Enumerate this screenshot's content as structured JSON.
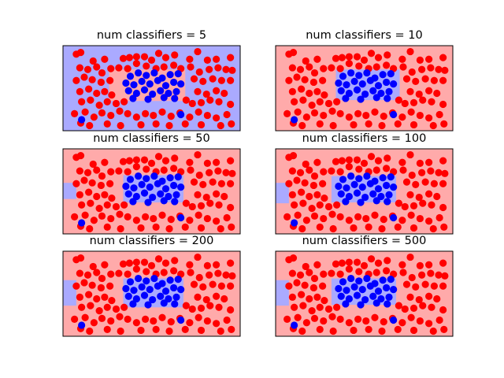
{
  "colors": {
    "region_red": "#FFAAAA",
    "region_blue": "#AAAAFF",
    "point_red": "#FF0000",
    "point_blue": "#0000FF",
    "frame": "#000000"
  },
  "chart_data": [
    {
      "type": "scatter",
      "title": "num classifiers = 5",
      "xlim": [
        0,
        20
      ],
      "ylim": [
        0,
        10
      ],
      "grid": false,
      "regions": [
        {
          "class": "blue",
          "x0": 0,
          "x1": 20,
          "y0": 0,
          "y1": 10
        },
        {
          "class": "red",
          "x0": 5.2,
          "x1": 13.8,
          "y0": 3.5,
          "y1": 7.2
        }
      ]
    },
    {
      "type": "scatter",
      "title": "num classifiers = 10",
      "xlim": [
        0,
        20
      ],
      "ylim": [
        0,
        10
      ],
      "grid": false,
      "regions": [
        {
          "class": "red",
          "x0": 0,
          "x1": 20,
          "y0": 0,
          "y1": 10
        },
        {
          "class": "blue",
          "x0": 6.8,
          "x1": 14.0,
          "y0": 3.6,
          "y1": 7.2
        }
      ]
    },
    {
      "type": "scatter",
      "title": "num classifiers = 50",
      "xlim": [
        0,
        20
      ],
      "ylim": [
        0,
        10
      ],
      "grid": false,
      "regions": [
        {
          "class": "red",
          "x0": 0,
          "x1": 20,
          "y0": 0,
          "y1": 10
        },
        {
          "class": "blue",
          "x0": 0,
          "x1": 1.5,
          "y0": 4.1,
          "y1": 6.0
        },
        {
          "class": "blue",
          "x0": 6.8,
          "x1": 13.6,
          "y0": 3.7,
          "y1": 6.9
        }
      ]
    },
    {
      "type": "scatter",
      "title": "num classifiers = 100",
      "xlim": [
        0,
        20
      ],
      "ylim": [
        0,
        10
      ],
      "grid": false,
      "regions": [
        {
          "class": "red",
          "x0": 0,
          "x1": 20,
          "y0": 0,
          "y1": 10
        },
        {
          "class": "blue",
          "x0": 0,
          "x1": 1.5,
          "y0": 3.6,
          "y1": 6.0
        },
        {
          "class": "blue",
          "x0": 6.3,
          "x1": 13.6,
          "y0": 3.7,
          "y1": 6.8
        }
      ]
    },
    {
      "type": "scatter",
      "title": "num classifiers = 200",
      "xlim": [
        0,
        20
      ],
      "ylim": [
        0,
        10
      ],
      "grid": false,
      "regions": [
        {
          "class": "red",
          "x0": 0,
          "x1": 20,
          "y0": 0,
          "y1": 10
        },
        {
          "class": "blue",
          "x0": 0,
          "x1": 1.5,
          "y0": 3.6,
          "y1": 6.6
        },
        {
          "class": "blue",
          "x0": 6.8,
          "x1": 13.6,
          "y0": 3.4,
          "y1": 6.8
        }
      ]
    },
    {
      "type": "scatter",
      "title": "num classifiers = 500",
      "xlim": [
        0,
        20
      ],
      "ylim": [
        0,
        10
      ],
      "grid": false,
      "regions": [
        {
          "class": "red",
          "x0": 0,
          "x1": 20,
          "y0": 0,
          "y1": 10
        },
        {
          "class": "blue",
          "x0": 0,
          "x1": 1.5,
          "y0": 3.6,
          "y1": 6.6
        },
        {
          "class": "blue",
          "x0": 6.3,
          "x1": 13.6,
          "y0": 3.7,
          "y1": 6.8
        }
      ]
    }
  ],
  "points": {
    "red": [
      [
        1.5,
        9.0
      ],
      [
        2.0,
        9.2
      ],
      [
        3.4,
        8.2
      ],
      [
        4.7,
        8.4
      ],
      [
        6.8,
        8.5
      ],
      [
        7.5,
        8.6
      ],
      [
        8.3,
        8.7
      ],
      [
        9.2,
        8.7
      ],
      [
        10.0,
        8.3
      ],
      [
        10.8,
        9.1
      ],
      [
        11.6,
        8.6
      ],
      [
        12.6,
        8.9
      ],
      [
        14.3,
        8.4
      ],
      [
        15.2,
        9.3
      ],
      [
        16.3,
        8.3
      ],
      [
        17.3,
        8.4
      ],
      [
        18.9,
        8.6
      ],
      [
        1.9,
        7.4
      ],
      [
        2.8,
        7.2
      ],
      [
        3.8,
        7.5
      ],
      [
        4.4,
        6.8
      ],
      [
        5.4,
        7.3
      ],
      [
        6.3,
        7.4
      ],
      [
        7.3,
        7.3
      ],
      [
        8.3,
        7.9
      ],
      [
        9.4,
        7.6
      ],
      [
        10.5,
        7.3
      ],
      [
        11.4,
        7.5
      ],
      [
        12.5,
        7.7
      ],
      [
        13.3,
        7.3
      ],
      [
        14.4,
        7.5
      ],
      [
        15.4,
        6.9
      ],
      [
        16.5,
        7.2
      ],
      [
        17.5,
        7.4
      ],
      [
        18.4,
        7.2
      ],
      [
        19.1,
        7.1
      ],
      [
        1.5,
        5.9
      ],
      [
        2.4,
        6.3
      ],
      [
        3.3,
        6.0
      ],
      [
        4.3,
        5.7
      ],
      [
        5.3,
        5.9
      ],
      [
        14.8,
        6.1
      ],
      [
        15.8,
        5.8
      ],
      [
        16.9,
        6.1
      ],
      [
        17.9,
        5.9
      ],
      [
        18.9,
        5.9
      ],
      [
        1.9,
        4.6
      ],
      [
        2.9,
        4.9
      ],
      [
        3.8,
        4.4
      ],
      [
        4.7,
        4.6
      ],
      [
        5.5,
        4.2
      ],
      [
        15.2,
        4.6
      ],
      [
        16.2,
        4.3
      ],
      [
        17.3,
        4.7
      ],
      [
        18.2,
        4.4
      ],
      [
        2.1,
        3.4
      ],
      [
        3.1,
        3.6
      ],
      [
        4.1,
        3.0
      ],
      [
        5.0,
        3.4
      ],
      [
        6.0,
        3.2
      ],
      [
        6.9,
        3.4
      ],
      [
        13.9,
        3.6
      ],
      [
        14.6,
        3.2
      ],
      [
        15.6,
        3.3
      ],
      [
        16.6,
        3.6
      ],
      [
        17.6,
        3.4
      ],
      [
        18.9,
        3.1
      ],
      [
        1.3,
        2.0
      ],
      [
        2.5,
        2.2
      ],
      [
        3.5,
        1.6
      ],
      [
        4.4,
        2.1
      ],
      [
        5.4,
        1.8
      ],
      [
        6.4,
        2.3
      ],
      [
        7.3,
        2.0
      ],
      [
        8.3,
        1.6
      ],
      [
        9.3,
        2.0
      ],
      [
        10.2,
        1.8
      ],
      [
        11.2,
        2.2
      ],
      [
        12.2,
        1.7
      ],
      [
        13.2,
        2.1
      ],
      [
        14.3,
        1.6
      ],
      [
        15.3,
        2.2
      ],
      [
        16.3,
        1.8
      ],
      [
        17.3,
        1.5
      ],
      [
        18.5,
        1.9
      ],
      [
        2.0,
        0.9
      ],
      [
        3.0,
        0.6
      ],
      [
        5.0,
        0.8
      ],
      [
        6.5,
        0.6
      ],
      [
        8.8,
        0.7
      ],
      [
        10.5,
        0.8
      ],
      [
        12.0,
        0.6
      ],
      [
        13.8,
        0.8
      ],
      [
        15.6,
        0.7
      ],
      [
        17.8,
        0.6
      ],
      [
        19.0,
        0.8
      ]
    ],
    "blue": [
      [
        7.6,
        6.4
      ],
      [
        8.5,
        6.8
      ],
      [
        9.4,
        6.5
      ],
      [
        10.3,
        6.8
      ],
      [
        11.2,
        6.2
      ],
      [
        12.1,
        6.6
      ],
      [
        13.0,
        6.7
      ],
      [
        7.1,
        5.6
      ],
      [
        8.0,
        5.4
      ],
      [
        8.9,
        5.8
      ],
      [
        9.8,
        5.5
      ],
      [
        10.7,
        5.9
      ],
      [
        11.6,
        5.3
      ],
      [
        12.5,
        5.7
      ],
      [
        13.3,
        5.5
      ],
      [
        7.4,
        4.7
      ],
      [
        8.3,
        4.4
      ],
      [
        9.2,
        4.8
      ],
      [
        10.1,
        4.3
      ],
      [
        11.0,
        4.7
      ],
      [
        11.9,
        4.4
      ],
      [
        12.8,
        4.6
      ],
      [
        7.9,
        3.8
      ],
      [
        9.6,
        3.7
      ],
      [
        11.4,
        3.9
      ],
      [
        12.6,
        3.8
      ],
      [
        2.1,
        1.3
      ],
      [
        13.3,
        1.9
      ]
    ]
  }
}
